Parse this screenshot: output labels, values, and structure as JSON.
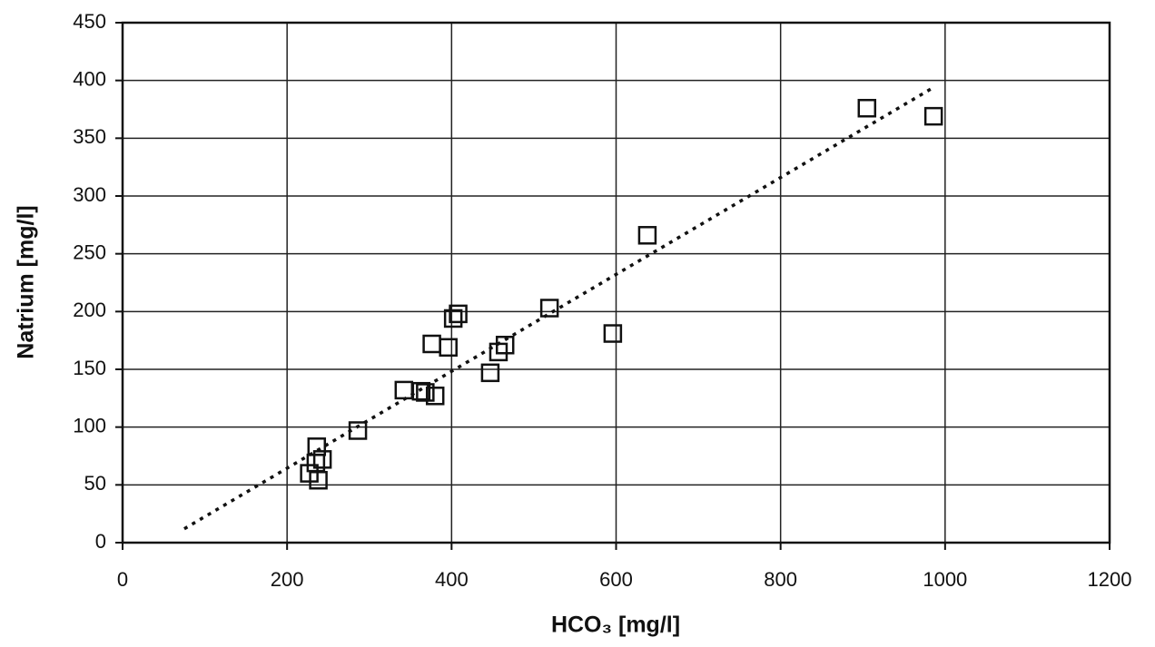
{
  "chart_data": {
    "type": "scatter",
    "x_label": "HCO₃ [mg/l]",
    "y_label": "Natrium [mg/l]",
    "series": [
      {
        "color": "#111111",
        "x": [
          905,
          986,
          638,
          519,
          596,
          408,
          402,
          376,
          396,
          465,
          457,
          447,
          342,
          363,
          368,
          380,
          286,
          236,
          243,
          227,
          235,
          238
        ],
        "values": [
          376,
          369,
          266,
          203,
          181,
          198,
          194,
          172,
          169,
          171,
          165,
          147,
          132,
          131,
          130,
          127,
          97,
          83,
          72,
          60,
          69,
          54
        ]
      }
    ],
    "trendline": {
      "x": [
        75,
        986
      ],
      "y": [
        12,
        394
      ],
      "color": "#111111"
    },
    "xlim": [
      0,
      1200
    ],
    "xticks": [
      0,
      200,
      400,
      600,
      800,
      1000,
      1200
    ],
    "ylim": [
      0,
      450
    ],
    "yticks": [
      0,
      50,
      100,
      150,
      200,
      250,
      300,
      350,
      400,
      450
    ],
    "grid": true
  }
}
